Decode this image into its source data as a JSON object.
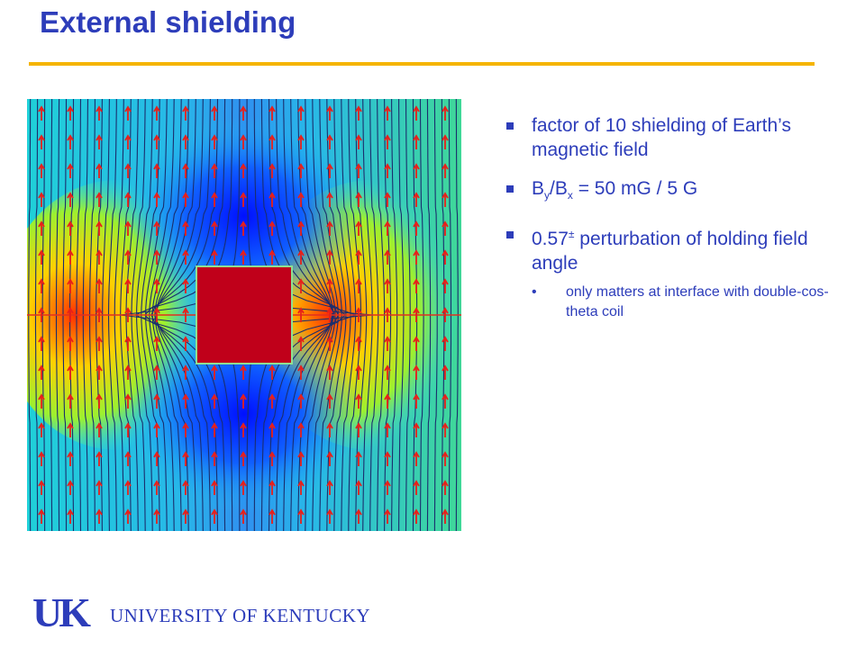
{
  "slide": {
    "title": "External shielding"
  },
  "bullets": {
    "item1": "factor of 10 shielding of Earth’s magnetic field",
    "item2": {
      "b": "B",
      "sub_y": "y",
      "slash": "/B",
      "sub_x": "x",
      "rest": " = 50 mG / 5 G"
    },
    "item3": {
      "value": "0.57",
      "sup": "±",
      "rest": " perturbation of holding field angle"
    },
    "subitem": "only matters at interface with double-cos-theta coil"
  },
  "logo": {
    "mark": "UK",
    "name": "UNIVERSITY OF KENTUCKY"
  },
  "colors": {
    "title": "#2d3dba",
    "rule": "#f5b400",
    "field_line": "#1a2e6e",
    "arrow": "#e8201a",
    "shield_fill": "#c0001a"
  },
  "icons": {
    "bullet": "square-bullet-icon"
  }
}
